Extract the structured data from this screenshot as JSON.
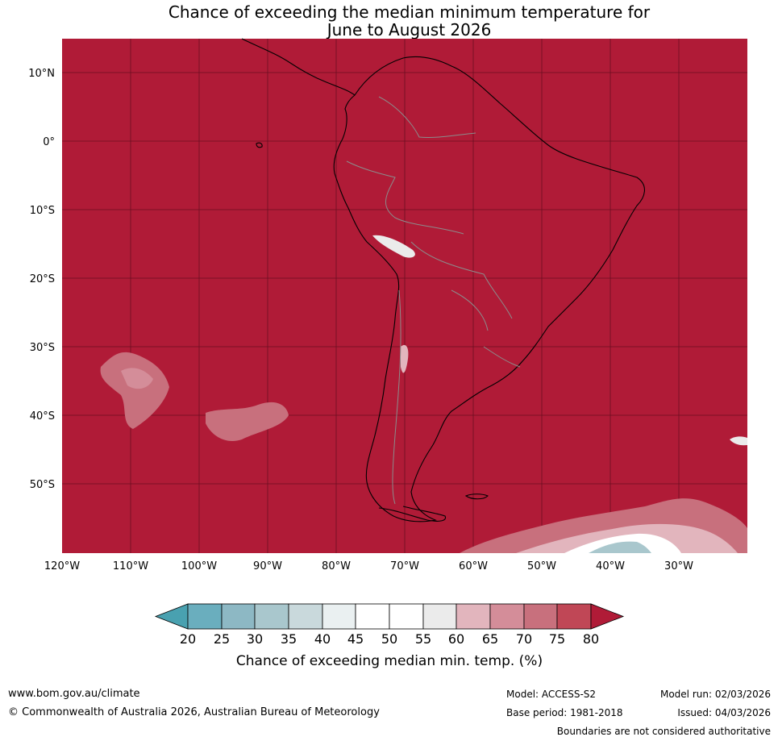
{
  "title": {
    "line1": "Chance of exceeding the median minimum temperature for",
    "line2": "June to August 2026"
  },
  "map": {
    "region": "South America",
    "lat_ticks": [
      "10°N",
      "0°",
      "10°S",
      "20°S",
      "30°S",
      "40°S",
      "50°S"
    ],
    "lon_ticks": [
      "120°W",
      "110°W",
      "100°W",
      "90°W",
      "80°W",
      "70°W",
      "60°W",
      "50°W",
      "40°W",
      "30°W"
    ],
    "background_color": "#b01b37",
    "gridline_color": "#6b0f22",
    "coastline_color": "#000000",
    "border_color": "#8c8c8c"
  },
  "colorbar": {
    "ticks": [
      "20",
      "25",
      "30",
      "35",
      "40",
      "45",
      "50",
      "55",
      "60",
      "65",
      "70",
      "75",
      "80"
    ],
    "colors": [
      "#49a1b0",
      "#6aaebe",
      "#8db8c4",
      "#a9c7cd",
      "#c9d9dc",
      "#eaf0f1",
      "#ffffff",
      "#ffffff",
      "#ebebeb",
      "#e2b5bd",
      "#d48d99",
      "#c8707d",
      "#c04756",
      "#b01b37"
    ],
    "title": "Chance of exceeding median min. temp. (%)"
  },
  "footer": {
    "website": "www.bom.gov.au/climate",
    "copyright": "© Commonwealth of Australia 2026, Australian Bureau of Meteorology",
    "model": "Model: ACCESS-S2",
    "base_period": "Base period: 1981-2018",
    "model_run": "Model run: 02/03/2026",
    "issued": "Issued: 04/03/2026",
    "disclaimer": "Boundaries are not considered authoritative"
  }
}
